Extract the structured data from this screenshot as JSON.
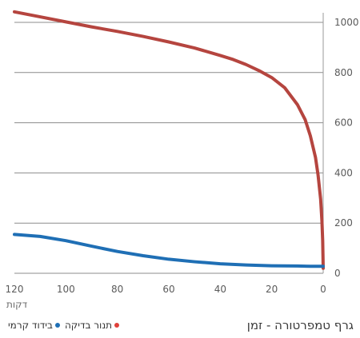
{
  "chart_data": {
    "type": "line",
    "title": "גרף טמפרטורה - זמן",
    "xlabel": "דקות",
    "ylabel": "",
    "xlim": [
      120,
      0
    ],
    "ylim": [
      0,
      1050
    ],
    "x_ticks": [
      "120",
      "100",
      "80",
      "60",
      "40",
      "20",
      "0"
    ],
    "y_ticks": [
      "0",
      "200",
      "400",
      "600",
      "800",
      "1000"
    ],
    "grid": true,
    "legend": "bottom-left",
    "series": [
      {
        "name": "תנור בדיקה",
        "color": "#b5453f",
        "legend_color": "#e0413a",
        "x": [
          120,
          110,
          100,
          90,
          80,
          70,
          60,
          50,
          40,
          35,
          30,
          25,
          20,
          15,
          10,
          7,
          5,
          3,
          2,
          1,
          0.5,
          0.2,
          0
        ],
        "y": [
          1042,
          1022,
          1002,
          982,
          964,
          944,
          922,
          898,
          868,
          852,
          832,
          808,
          780,
          740,
          672,
          612,
          548,
          462,
          392,
          296,
          210,
          130,
          20
        ]
      },
      {
        "name": "בידוד קרמי",
        "color": "#1f6fb5",
        "legend_color": "#1f6fb5",
        "x": [
          120,
          110,
          100,
          90,
          80,
          70,
          60,
          50,
          40,
          30,
          20,
          10,
          5,
          0
        ],
        "y": [
          155,
          147,
          130,
          108,
          87,
          70,
          56,
          46,
          38,
          33,
          30,
          29,
          28,
          28
        ]
      }
    ]
  }
}
